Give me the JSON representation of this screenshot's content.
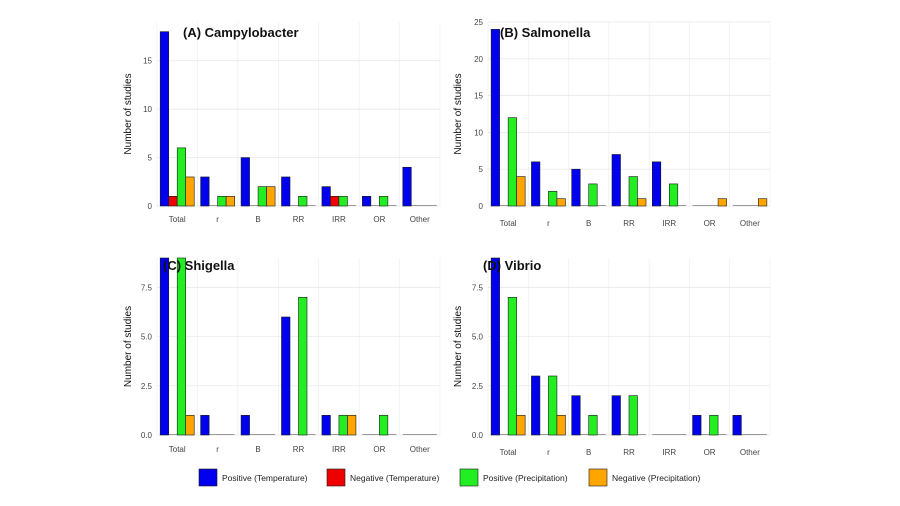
{
  "colors": {
    "Positive (Temperature)": "#0000ee",
    "Negative (Temperature)": "#ee0000",
    "Positive (Precipitation)": "#22ee22",
    "Negative (Precipitation)": "#ffa500"
  },
  "legend": [
    "Positive (Temperature)",
    "Negative (Temperature)",
    "Positive (Precipitation)",
    "Negative (Precipitation)"
  ],
  "chart_data": [
    {
      "type": "bar",
      "title": "(A) Campylobacter",
      "ylabel": "Number of studies",
      "categories": [
        "Total",
        "r",
        "B",
        "RR",
        "IRR",
        "OR",
        "Other"
      ],
      "ylim": [
        0,
        19
      ],
      "yticks": [
        0,
        5,
        10,
        15
      ],
      "series": [
        {
          "name": "Positive (Temperature)",
          "values": [
            18,
            3,
            5,
            3,
            2,
            1,
            4
          ]
        },
        {
          "name": "Negative (Temperature)",
          "values": [
            1,
            0,
            0,
            0,
            1,
            0,
            0
          ]
        },
        {
          "name": "Positive (Precipitation)",
          "values": [
            6,
            1,
            2,
            1,
            1,
            1,
            0
          ]
        },
        {
          "name": "Negative (Precipitation)",
          "values": [
            3,
            1,
            2,
            0,
            0,
            0,
            0
          ]
        }
      ]
    },
    {
      "type": "bar",
      "title": "(B) Salmonella",
      "ylabel": "Number of studies",
      "categories": [
        "Total",
        "r",
        "B",
        "RR",
        "IRR",
        "OR",
        "Other"
      ],
      "ylim": [
        0,
        25
      ],
      "yticks": [
        0,
        5,
        10,
        15,
        20,
        25
      ],
      "series": [
        {
          "name": "Positive (Temperature)",
          "values": [
            24,
            6,
            5,
            7,
            6,
            0,
            0
          ]
        },
        {
          "name": "Negative (Temperature)",
          "values": [
            0,
            0,
            0,
            0,
            0,
            0,
            0
          ]
        },
        {
          "name": "Positive (Precipitation)",
          "values": [
            12,
            2,
            3,
            4,
            3,
            0,
            0
          ]
        },
        {
          "name": "Negative (Precipitation)",
          "values": [
            4,
            1,
            0,
            1,
            0,
            1,
            1
          ]
        }
      ]
    },
    {
      "type": "bar",
      "title": "(C) Shigella",
      "ylabel": "Number of studies",
      "categories": [
        "Total",
        "r",
        "B",
        "RR",
        "IRR",
        "OR",
        "Other"
      ],
      "ylim": [
        0,
        9
      ],
      "yticks": [
        0,
        2.5,
        5,
        7.5
      ],
      "ytick_labels": [
        "0.0",
        "2.5",
        "5.0",
        "7.5"
      ],
      "series": [
        {
          "name": "Positive (Temperature)",
          "values": [
            9,
            1,
            1,
            6,
            1,
            0,
            0
          ]
        },
        {
          "name": "Negative (Temperature)",
          "values": [
            0,
            0,
            0,
            0,
            0,
            0,
            0
          ]
        },
        {
          "name": "Positive (Precipitation)",
          "values": [
            9,
            0,
            0,
            7,
            1,
            1,
            0
          ]
        },
        {
          "name": "Negative (Precipitation)",
          "values": [
            1,
            0,
            0,
            0,
            1,
            0,
            0
          ]
        }
      ]
    },
    {
      "type": "bar",
      "title": "(D) Vibrio",
      "ylabel": "Number of studies",
      "categories": [
        "Total",
        "r",
        "B",
        "RR",
        "IRR",
        "OR",
        "Other"
      ],
      "ylim": [
        0,
        9
      ],
      "yticks": [
        0,
        2.5,
        5,
        7.5
      ],
      "ytick_labels": [
        "0.0",
        "2.5",
        "5.0",
        "7.5"
      ],
      "series": [
        {
          "name": "Positive (Temperature)",
          "values": [
            9,
            3,
            2,
            2,
            0,
            1,
            1
          ]
        },
        {
          "name": "Negative (Temperature)",
          "values": [
            0,
            0,
            0,
            0,
            0,
            0,
            0
          ]
        },
        {
          "name": "Positive (Precipitation)",
          "values": [
            7,
            3,
            1,
            2,
            0,
            1,
            0
          ]
        },
        {
          "name": "Negative (Precipitation)",
          "values": [
            1,
            1,
            0,
            0,
            0,
            0,
            0
          ]
        }
      ]
    }
  ]
}
